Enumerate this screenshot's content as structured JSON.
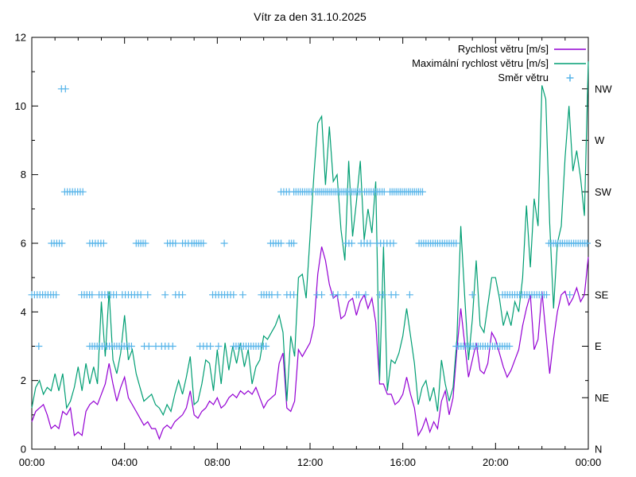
{
  "page": {
    "background": "#ffffff"
  },
  "chart_data": {
    "type": "line",
    "title": "Vítr za den 31.10.2025",
    "xlabel": "",
    "ylabel": "",
    "xlim": [
      0,
      24
    ],
    "ylim": [
      0,
      12
    ],
    "grid": false,
    "legend_position": "top-right-inside",
    "x_major_ticks": [
      {
        "t": 0,
        "label": "00:00"
      },
      {
        "t": 4,
        "label": "04:00"
      },
      {
        "t": 8,
        "label": "08:00"
      },
      {
        "t": 12,
        "label": "12:00"
      },
      {
        "t": 16,
        "label": "16:00"
      },
      {
        "t": 20,
        "label": "20:00"
      },
      {
        "t": 24,
        "label": "00:00"
      }
    ],
    "x_minor_step_hours": 1,
    "y_major_ticks": [
      0,
      2,
      4,
      6,
      8,
      10,
      12
    ],
    "y_minor_ticks": [
      1,
      3,
      5,
      7,
      9,
      11
    ],
    "y2_ticks": [
      {
        "value": 0,
        "label": "N"
      },
      {
        "value": 1.5,
        "label": "NE"
      },
      {
        "value": 3,
        "label": "E"
      },
      {
        "value": 4.5,
        "label": "SE"
      },
      {
        "value": 6,
        "label": "S"
      },
      {
        "value": 7.5,
        "label": "SW"
      },
      {
        "value": 9,
        "label": "W"
      },
      {
        "value": 10.5,
        "label": "NW"
      }
    ],
    "colors": {
      "wind_speed": "#9400d3",
      "max_wind_speed": "#009e73",
      "wind_direction": "#56b4e9",
      "axis": "#000000"
    },
    "legend": [
      {
        "label": "Rychlost větru [m/s]",
        "series": "wind_speed",
        "style": "line"
      },
      {
        "label": "Maximální rychlost větru [m/s]",
        "series": "max_wind_speed",
        "style": "line"
      },
      {
        "label": "Směr větru",
        "series": "wind_direction",
        "style": "plus"
      }
    ],
    "sample_step_hours": 0.1666667,
    "series": [
      {
        "name": "Rychlost větru [m/s]",
        "key": "wind_speed",
        "values": [
          0.8,
          1.1,
          1.2,
          1.3,
          1.0,
          0.6,
          0.7,
          0.6,
          1.1,
          1.0,
          1.2,
          0.4,
          0.5,
          0.4,
          1.1,
          1.3,
          1.4,
          1.3,
          1.6,
          1.9,
          2.5,
          1.9,
          1.4,
          1.8,
          2.1,
          1.5,
          1.3,
          1.1,
          0.9,
          0.7,
          0.8,
          0.6,
          0.6,
          0.3,
          0.6,
          0.7,
          0.6,
          0.8,
          0.9,
          1.0,
          1.2,
          1.7,
          1.0,
          0.9,
          1.1,
          1.2,
          1.4,
          1.3,
          1.5,
          1.2,
          1.3,
          1.5,
          1.6,
          1.5,
          1.7,
          1.6,
          1.7,
          1.6,
          1.8,
          1.5,
          1.2,
          1.4,
          1.5,
          1.6,
          2.5,
          2.8,
          1.2,
          1.1,
          1.4,
          2.9,
          2.7,
          2.9,
          3.1,
          3.6,
          5.1,
          5.9,
          5.5,
          4.8,
          4.4,
          4.5,
          3.8,
          3.9,
          4.3,
          4.4,
          3.9,
          4.3,
          4.5,
          4.1,
          4.4,
          3.7,
          1.9,
          1.9,
          1.6,
          1.6,
          1.3,
          1.4,
          1.6,
          2.1,
          1.6,
          1.2,
          0.4,
          0.6,
          0.9,
          0.5,
          0.8,
          0.6,
          1.4,
          1.7,
          1.0,
          1.5,
          2.9,
          4.1,
          3.1,
          2.1,
          2.6,
          3.1,
          2.3,
          2.2,
          2.5,
          3.4,
          3.2,
          2.8,
          2.4,
          2.1,
          2.3,
          2.6,
          2.9,
          3.6,
          4.1,
          4.5,
          2.9,
          3.2,
          4.6,
          3.4,
          2.2,
          3.2,
          4.0,
          4.5,
          4.6,
          4.2,
          4.4,
          4.7,
          4.3,
          4.5,
          5.6
        ]
      },
      {
        "name": "Maximální rychlost větru [m/s]",
        "key": "max_wind_speed",
        "values": [
          1.2,
          1.8,
          2.0,
          1.6,
          1.8,
          1.7,
          2.2,
          1.7,
          2.2,
          1.2,
          1.4,
          1.8,
          2.4,
          1.7,
          2.5,
          1.9,
          2.4,
          1.9,
          4.3,
          2.7,
          4.6,
          2.6,
          2.2,
          2.8,
          3.9,
          2.6,
          2.9,
          2.2,
          1.8,
          1.4,
          1.5,
          1.6,
          1.3,
          1.2,
          1.0,
          1.3,
          1.1,
          1.6,
          2.0,
          1.6,
          2.1,
          2.7,
          1.3,
          1.4,
          1.9,
          2.6,
          2.5,
          1.7,
          2.9,
          1.9,
          3.1,
          2.3,
          3.0,
          2.5,
          3.1,
          2.4,
          2.9,
          1.9,
          2.4,
          2.6,
          3.3,
          3.2,
          3.4,
          3.6,
          3.9,
          3.4,
          1.4,
          3.3,
          2.7,
          5.0,
          5.1,
          4.4,
          6.2,
          8.0,
          9.5,
          9.7,
          7.7,
          9.4,
          7.8,
          8.0,
          6.4,
          5.5,
          8.4,
          6.2,
          7.2,
          8.4,
          6.1,
          7.0,
          6.3,
          7.8,
          2.0,
          5.9,
          1.7,
          2.6,
          2.5,
          2.8,
          3.3,
          4.1,
          3.3,
          2.5,
          1.3,
          1.8,
          2.0,
          1.4,
          1.8,
          1.1,
          2.6,
          1.9,
          1.4,
          1.8,
          3.2,
          6.5,
          4.5,
          2.6,
          3.8,
          5.5,
          3.6,
          3.4,
          4.2,
          5.0,
          5.0,
          4.4,
          3.6,
          4.0,
          3.6,
          4.3,
          4.0,
          5.0,
          7.1,
          5.3,
          7.3,
          6.5,
          10.6,
          10.2,
          6.6,
          4.1,
          6.0,
          6.5,
          8.5,
          10.0,
          8.1,
          8.7,
          7.9,
          6.8,
          11.3
        ]
      }
    ],
    "direction_scale": {
      "N": 0,
      "NE": 1.5,
      "E": 3,
      "SE": 4.5,
      "S": 6,
      "SW": 7.5,
      "W": 9,
      "NW": 10.5
    },
    "direction_markers": [
      {
        "dir": "NW",
        "from": 1.28,
        "to": 1.45,
        "count": 2
      },
      {
        "dir": "SW",
        "from": 1.42,
        "to": 2.2,
        "count": 8
      },
      {
        "dir": "SW",
        "from": 10.75,
        "to": 11.1,
        "count": 4
      },
      {
        "dir": "SW",
        "from": 11.3,
        "to": 12.05,
        "count": 9
      },
      {
        "dir": "SW",
        "from": 12.25,
        "to": 14.15,
        "count": 23
      },
      {
        "dir": "SW",
        "from": 14.35,
        "to": 15.2,
        "count": 10
      },
      {
        "dir": "SW",
        "from": 15.45,
        "to": 16.85,
        "count": 17
      },
      {
        "dir": "S",
        "from": 0.85,
        "to": 1.3,
        "count": 5
      },
      {
        "dir": "S",
        "from": 2.5,
        "to": 3.1,
        "count": 6
      },
      {
        "dir": "S",
        "from": 4.5,
        "to": 4.9,
        "count": 5
      },
      {
        "dir": "S",
        "from": 5.85,
        "to": 6.2,
        "count": 4
      },
      {
        "dir": "S",
        "from": 6.5,
        "to": 6.75,
        "count": 3
      },
      {
        "dir": "S",
        "from": 6.9,
        "to": 7.4,
        "count": 6
      },
      {
        "dir": "S",
        "from": 8.3,
        "to": 8.3,
        "count": 1
      },
      {
        "dir": "S",
        "from": 10.3,
        "to": 10.75,
        "count": 5
      },
      {
        "dir": "S",
        "from": 11.1,
        "to": 11.3,
        "count": 3
      },
      {
        "dir": "S",
        "from": 13.55,
        "to": 13.8,
        "count": 3
      },
      {
        "dir": "S",
        "from": 14.2,
        "to": 14.6,
        "count": 4
      },
      {
        "dir": "S",
        "from": 14.9,
        "to": 15.6,
        "count": 6
      },
      {
        "dir": "S",
        "from": 16.7,
        "to": 18.3,
        "count": 17
      },
      {
        "dir": "S",
        "from": 22.3,
        "to": 23.95,
        "count": 18
      },
      {
        "dir": "SE",
        "from": 0.0,
        "to": 1.05,
        "count": 10
      },
      {
        "dir": "SE",
        "from": 2.15,
        "to": 2.6,
        "count": 5
      },
      {
        "dir": "SE",
        "from": 2.9,
        "to": 3.65,
        "count": 7
      },
      {
        "dir": "SE",
        "from": 3.9,
        "to": 4.7,
        "count": 7
      },
      {
        "dir": "SE",
        "from": 5.0,
        "to": 5.0,
        "count": 1
      },
      {
        "dir": "SE",
        "from": 5.75,
        "to": 5.75,
        "count": 1
      },
      {
        "dir": "SE",
        "from": 6.2,
        "to": 6.5,
        "count": 3
      },
      {
        "dir": "SE",
        "from": 7.8,
        "to": 8.7,
        "count": 8
      },
      {
        "dir": "SE",
        "from": 9.1,
        "to": 9.1,
        "count": 1
      },
      {
        "dir": "SE",
        "from": 9.9,
        "to": 10.35,
        "count": 5
      },
      {
        "dir": "SE",
        "from": 10.6,
        "to": 10.6,
        "count": 1
      },
      {
        "dir": "SE",
        "from": 11.0,
        "to": 11.3,
        "count": 3
      },
      {
        "dir": "SE",
        "from": 12.3,
        "to": 12.5,
        "count": 2
      },
      {
        "dir": "SE",
        "from": 13.0,
        "to": 13.2,
        "count": 2
      },
      {
        "dir": "SE",
        "from": 13.55,
        "to": 13.55,
        "count": 1
      },
      {
        "dir": "SE",
        "from": 14.0,
        "to": 14.1,
        "count": 2
      },
      {
        "dir": "SE",
        "from": 14.4,
        "to": 14.4,
        "count": 1
      },
      {
        "dir": "SE",
        "from": 15.0,
        "to": 15.15,
        "count": 2
      },
      {
        "dir": "SE",
        "from": 15.5,
        "to": 15.7,
        "count": 2
      },
      {
        "dir": "SE",
        "from": 16.3,
        "to": 16.3,
        "count": 1
      },
      {
        "dir": "SE",
        "from": 19.0,
        "to": 19.0,
        "count": 1
      },
      {
        "dir": "SE",
        "from": 20.3,
        "to": 22.2,
        "count": 19
      },
      {
        "dir": "SE",
        "from": 23.2,
        "to": 23.2,
        "count": 1
      },
      {
        "dir": "E",
        "from": 0.3,
        "to": 0.3,
        "count": 1
      },
      {
        "dir": "E",
        "from": 2.5,
        "to": 4.3,
        "count": 18
      },
      {
        "dir": "E",
        "from": 4.85,
        "to": 4.85,
        "count": 1
      },
      {
        "dir": "E",
        "from": 5.05,
        "to": 5.05,
        "count": 1
      },
      {
        "dir": "E",
        "from": 5.35,
        "to": 5.35,
        "count": 1
      },
      {
        "dir": "E",
        "from": 5.6,
        "to": 5.9,
        "count": 3
      },
      {
        "dir": "E",
        "from": 6.08,
        "to": 6.08,
        "count": 1
      },
      {
        "dir": "E",
        "from": 7.25,
        "to": 7.7,
        "count": 4
      },
      {
        "dir": "E",
        "from": 8.05,
        "to": 8.05,
        "count": 1
      },
      {
        "dir": "E",
        "from": 8.7,
        "to": 10.1,
        "count": 14
      },
      {
        "dir": "E",
        "from": 18.3,
        "to": 20.5,
        "count": 22
      },
      {
        "dir": "E",
        "from": 20.6,
        "to": 20.6,
        "count": 1
      }
    ]
  }
}
